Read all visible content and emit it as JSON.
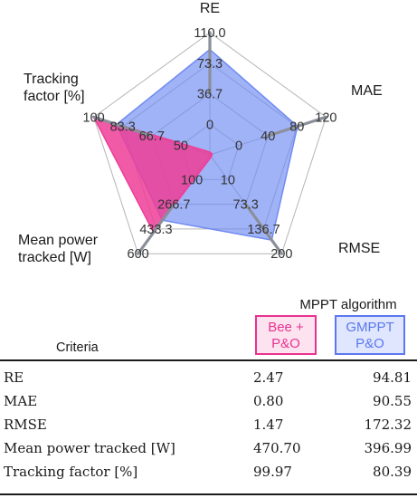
{
  "chart_data": {
    "type": "radar",
    "axes": [
      {
        "label": "RE",
        "max": 110.0,
        "ticks": [
          "0",
          "36.7",
          "73.3",
          "110.0"
        ]
      },
      {
        "label": "MAE",
        "max": 120,
        "ticks": [
          "0",
          "40",
          "80",
          "120"
        ]
      },
      {
        "label": "RMSE",
        "max": 200,
        "ticks": [
          "10",
          "73.3",
          "136.7",
          "200"
        ]
      },
      {
        "label": "Mean power\ntracked [W]",
        "max": 600,
        "ticks": [
          "100",
          "266.7",
          "433.3",
          "600"
        ]
      },
      {
        "label": "Tracking\nfactor [%]",
        "max": 100,
        "ticks": [
          "50",
          "66.7",
          "83.3",
          "100"
        ]
      }
    ],
    "series": [
      {
        "name": "GMPPT P&O",
        "color": "#6f8bf3",
        "values": [
          94.81,
          90.55,
          172.32,
          396.99,
          80.39
        ]
      },
      {
        "name": "Bee + P&O",
        "color": "#ee3d97",
        "values": [
          2.47,
          0.8,
          1.47,
          470.7,
          99.97
        ]
      }
    ],
    "grid": true
  },
  "table": {
    "group_header": "MPPT algorithm",
    "criteria_header": "Criteria",
    "col_bee_line1": "Bee +",
    "col_bee_line2": "P&O",
    "col_gm_line1": "GMPPT",
    "col_gm_line2": "P&O",
    "rows": [
      {
        "name": "RE",
        "bee": "2.47",
        "gm": "94.81"
      },
      {
        "name": "MAE",
        "bee": "0.80",
        "gm": "90.55"
      },
      {
        "name": "RMSE",
        "bee": "1.47",
        "gm": "172.32"
      },
      {
        "name": "Mean power tracked [W]",
        "bee": "470.70",
        "gm": "396.99"
      },
      {
        "name": "Tracking factor [%]",
        "bee": "99.97",
        "gm": "80.39"
      }
    ]
  }
}
